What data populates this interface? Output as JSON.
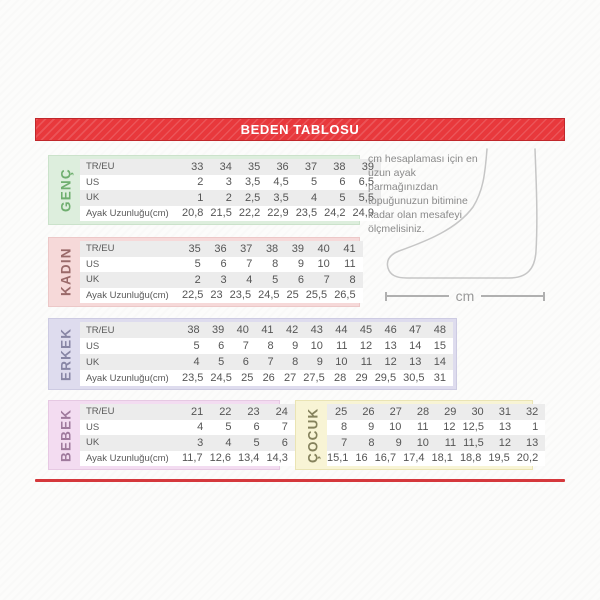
{
  "header": {
    "title": "BEDEN TABLOSU",
    "bar_color": "#e8383c",
    "bar_border_color": "#c0272b"
  },
  "row_labels": [
    "TR/EU",
    "US",
    "UK",
    "Ayak Uzunluğu(cm)"
  ],
  "sections": [
    {
      "id": "genc",
      "label": "GENÇ",
      "colors": {
        "bg": "#ddeedd",
        "border": "#cbe2cb",
        "label": "#6fae6f"
      },
      "show_row_labels": true,
      "rows": [
        [
          "33",
          "34",
          "35",
          "36",
          "37",
          "38",
          "39"
        ],
        [
          "2",
          "3",
          "3,5",
          "4,5",
          "5",
          "6",
          "6,5"
        ],
        [
          "1",
          "2",
          "2,5",
          "3,5",
          "4",
          "5",
          "5,5"
        ],
        [
          "20,8",
          "21,5",
          "22,2",
          "22,9",
          "23,5",
          "24,2",
          "24,9"
        ]
      ]
    },
    {
      "id": "kadin",
      "label": "KADIN",
      "colors": {
        "bg": "#f6d9d9",
        "border": "#ecc8c8",
        "label": "#9a6a6a"
      },
      "show_row_labels": true,
      "rows": [
        [
          "35",
          "36",
          "37",
          "38",
          "39",
          "40",
          "41"
        ],
        [
          "5",
          "6",
          "7",
          "8",
          "9",
          "10",
          "11"
        ],
        [
          "2",
          "3",
          "4",
          "5",
          "6",
          "7",
          "8"
        ],
        [
          "22,5",
          "23",
          "23,5",
          "24,5",
          "25",
          "25,5",
          "26,5"
        ]
      ]
    },
    {
      "id": "erkek",
      "label": "ERKEK",
      "colors": {
        "bg": "#dedcee",
        "border": "#cdcbe2",
        "label": "#8886a5"
      },
      "show_row_labels": true,
      "rows": [
        [
          "38",
          "39",
          "40",
          "41",
          "42",
          "43",
          "44",
          "45",
          "46",
          "47",
          "48"
        ],
        [
          "5",
          "6",
          "7",
          "8",
          "9",
          "10",
          "11",
          "12",
          "13",
          "14",
          "15"
        ],
        [
          "4",
          "5",
          "6",
          "7",
          "8",
          "9",
          "10",
          "11",
          "12",
          "13",
          "14"
        ],
        [
          "23,5",
          "24,5",
          "25",
          "26",
          "27",
          "27,5",
          "28",
          "29",
          "29,5",
          "30,5",
          "31"
        ]
      ]
    },
    {
      "id": "bebek",
      "label": "BEBEK",
      "colors": {
        "bg": "#f3dcf1",
        "border": "#e6c9e3",
        "label": "#9f7a9d"
      },
      "show_row_labels": true,
      "rows": [
        [
          "21",
          "22",
          "23",
          "24"
        ],
        [
          "4",
          "5",
          "6",
          "7"
        ],
        [
          "3",
          "4",
          "5",
          "6"
        ],
        [
          "11,7",
          "12,6",
          "13,4",
          "14,3"
        ]
      ]
    },
    {
      "id": "cocuk",
      "label": "ÇOCUK",
      "colors": {
        "bg": "#f8f4d5",
        "border": "#eae4b4",
        "label": "#85825c"
      },
      "show_row_labels": false,
      "rows": [
        [
          "25",
          "26",
          "27",
          "28",
          "29",
          "30",
          "31",
          "32"
        ],
        [
          "8",
          "9",
          "10",
          "11",
          "12",
          "12,5",
          "13",
          "1"
        ],
        [
          "7",
          "8",
          "9",
          "10",
          "11",
          "11,5",
          "12",
          "13"
        ],
        [
          "15,1",
          "16",
          "16,7",
          "17,4",
          "18,1",
          "18,8",
          "19,5",
          "20,2"
        ]
      ]
    }
  ],
  "measure_note": {
    "text": "cm hesaplaması için en uzun ayak parmağınızdan topuğunuzun bitimine kadar olan mesafeyi ölçmelisiniz.",
    "unit_label": "cm"
  },
  "stripe_colors": {
    "odd_row": "#ececec",
    "even_row": "#ffffff"
  }
}
